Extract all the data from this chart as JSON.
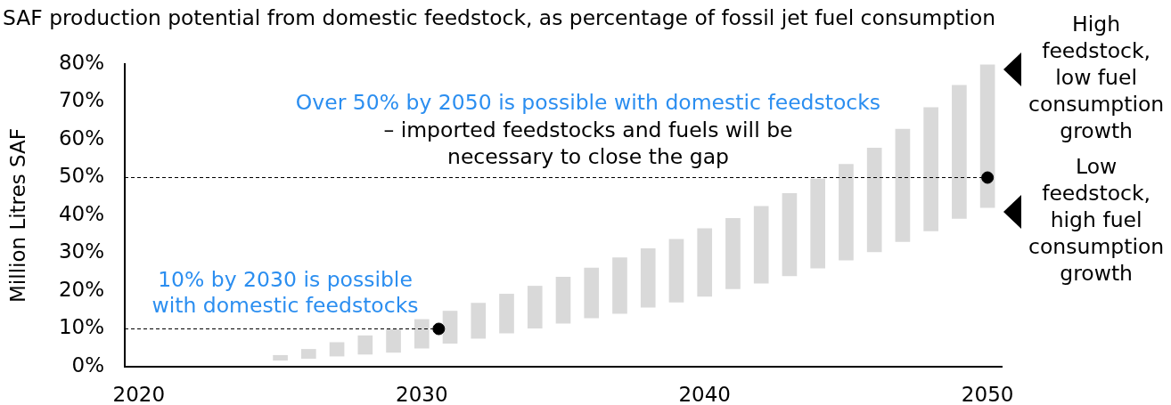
{
  "chart_data": {
    "type": "bar",
    "title": "SAF production potential from domestic feedstock, as percentage of fossil jet fuel consumption",
    "ylabel": "Million Litres SAF",
    "x": [
      2025,
      2026,
      2027,
      2028,
      2029,
      2030,
      2031,
      2032,
      2033,
      2034,
      2035,
      2036,
      2037,
      2038,
      2039,
      2040,
      2041,
      2042,
      2043,
      2044,
      2045,
      2046,
      2047,
      2048,
      2049,
      2050
    ],
    "series": [
      {
        "color": "#d9d9d9",
        "base": [
          1.7,
          2.2,
          2.8,
          3.3,
          3.8,
          4.9,
          6.2,
          7.5,
          8.9,
          10.2,
          11.5,
          12.9,
          14.1,
          15.7,
          17.1,
          18.6,
          20.6,
          22.1,
          24,
          26.1,
          28.2,
          30.4,
          33.1,
          35.9,
          39.2,
          42.1
        ],
        "values": [
          1.3,
          2.4,
          3.6,
          4.9,
          6.0,
          7.6,
          8.5,
          9.3,
          10.3,
          11.1,
          12.2,
          13.2,
          14.7,
          15.5,
          16.6,
          17.9,
          18.6,
          20.3,
          21.8,
          23.5,
          25.3,
          27.4,
          29.7,
          32.6,
          35.2,
          37.7
        ]
      },
      {
        "type": "scatter",
        "color": "#000000",
        "marker": "circle",
        "x": [
          2030.6,
          2050
        ],
        "values": [
          10,
          50
        ]
      }
    ],
    "xlim": [
      2019.5,
      2050.5
    ],
    "xticks": [
      2020,
      2030,
      2040,
      2050
    ],
    "ylim": [
      0,
      80
    ],
    "yticks": [
      {
        "value": 0,
        "label": "0%"
      },
      {
        "value": 10,
        "label": "10%"
      },
      {
        "value": 20,
        "label": "20%"
      },
      {
        "value": 30,
        "label": "30%"
      },
      {
        "value": 40,
        "label": "40%"
      },
      {
        "value": 50,
        "label": "50%"
      },
      {
        "value": 60,
        "label": "60%"
      },
      {
        "value": 70,
        "label": "70%"
      },
      {
        "value": 80,
        "label": "80%"
      }
    ],
    "ref_lines": [
      {
        "axis": "y",
        "value": 10,
        "line_style": "dashed",
        "color": "#000000"
      },
      {
        "axis": "y",
        "value": 50,
        "line_style": "dashed",
        "color": "#000000"
      }
    ],
    "annotations": [
      "10% by 2030 is possible with domestic feedstocks",
      "Over 50% by 2050 is possible with domestic feedstocks",
      "– imported feedstocks and fuels will be necessary to close the gap",
      {
        "text": "High feedstock, low fuel consumption growth",
        "x": 2050,
        "y": 79.8
      },
      {
        "text": "Low feedstock, high fuel consumption growth",
        "x": 2050,
        "y": 42.1
      }
    ]
  }
}
